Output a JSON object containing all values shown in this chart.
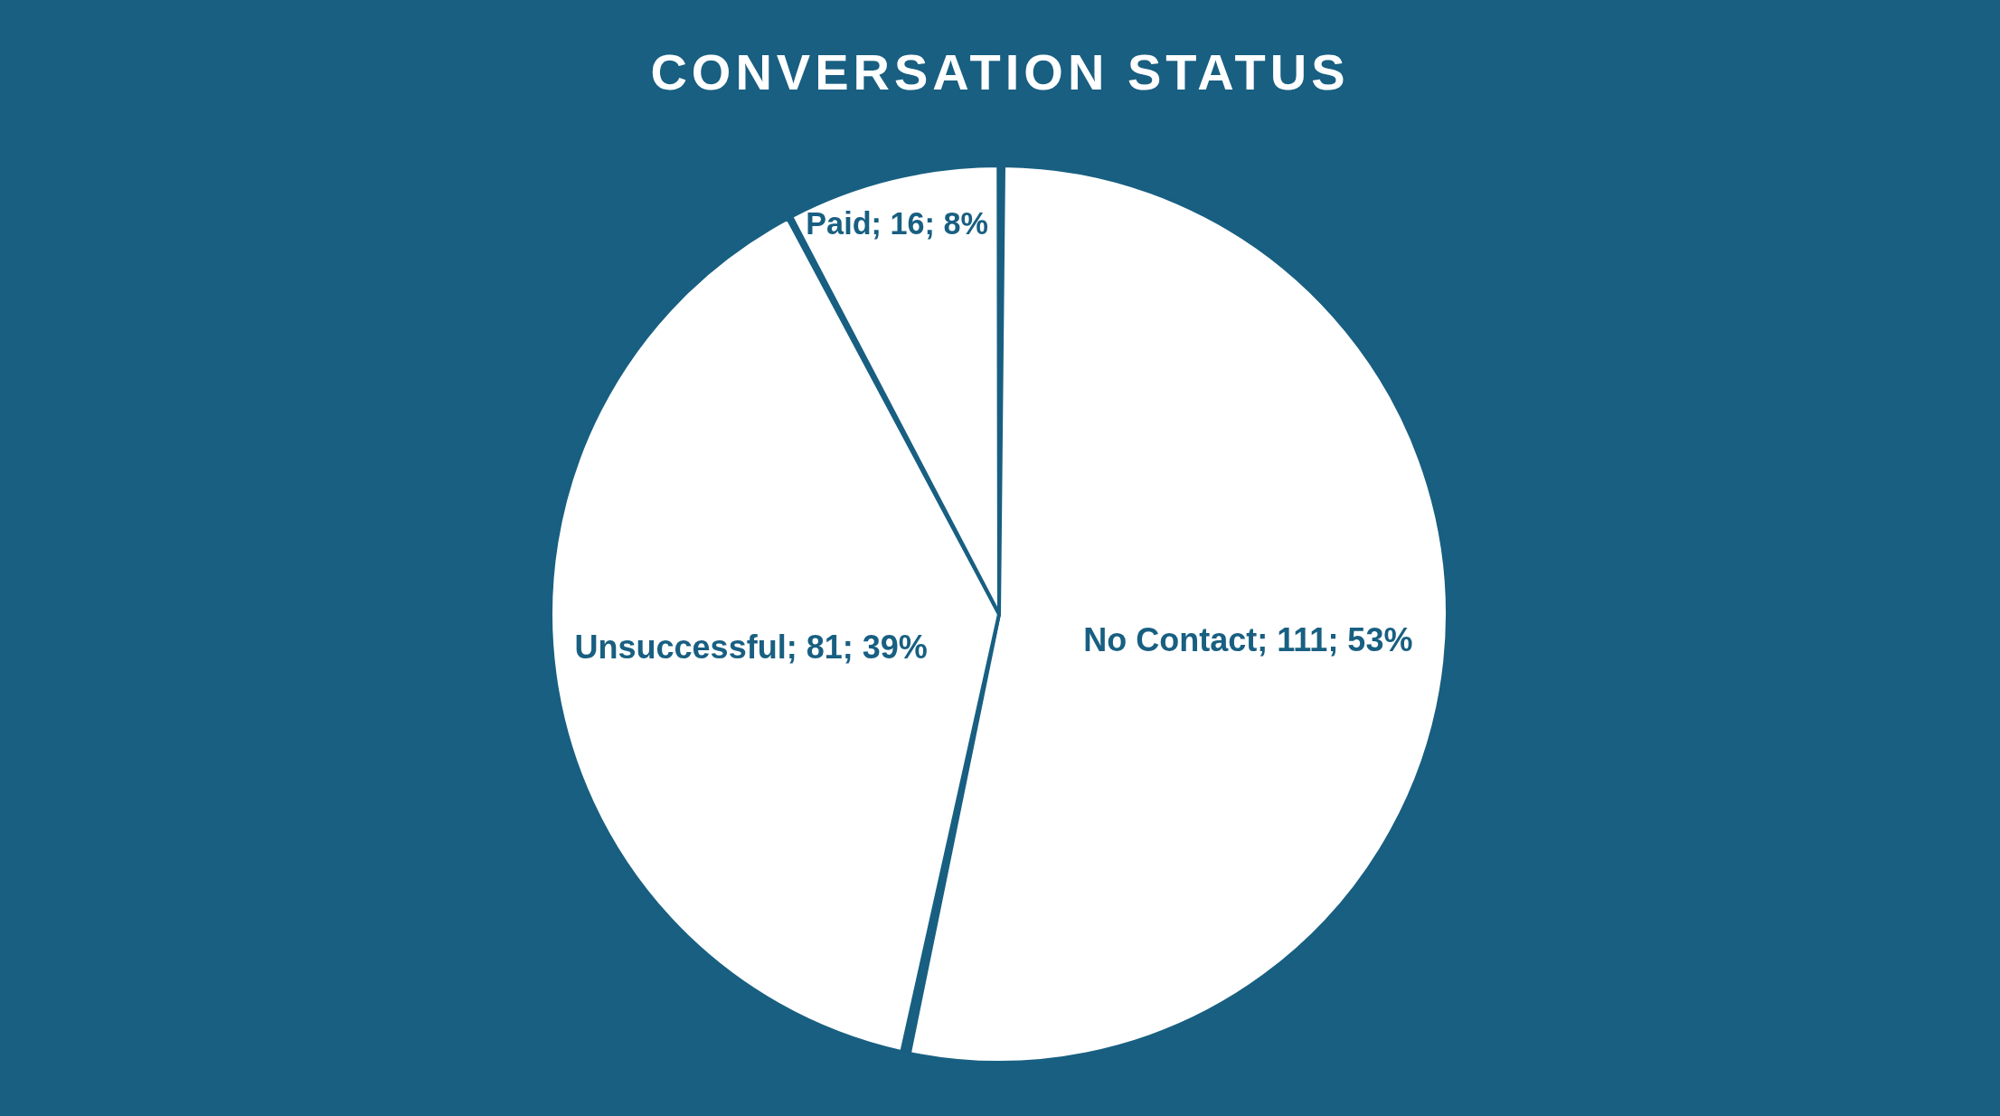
{
  "chart_data": {
    "type": "pie",
    "title": "CONVERSATION STATUS",
    "categories": [
      "No Contact",
      "Unsuccessful",
      "Paid"
    ],
    "values": [
      111,
      81,
      16
    ],
    "colors": [
      "#ffffff",
      "#ffffff",
      "#ffffff"
    ],
    "value_labels": [
      "111; 53%",
      "81; 39%",
      "16; 8%"
    ]
  }
}
